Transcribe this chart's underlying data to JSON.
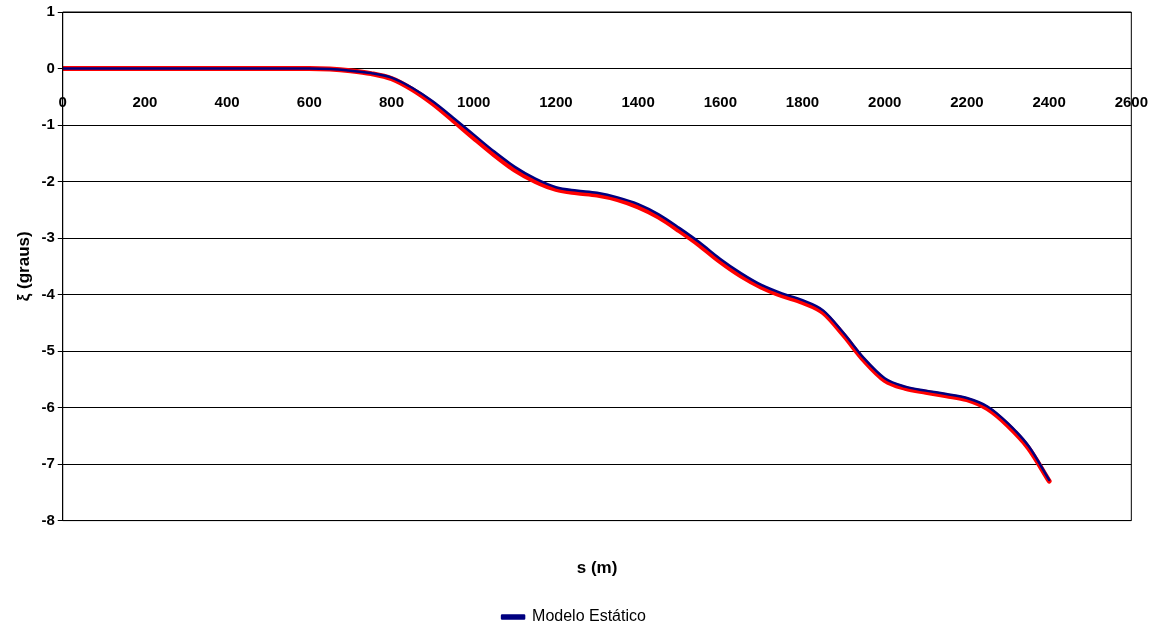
{
  "chart_data": {
    "type": "line",
    "xlabel": "s (m)",
    "ylabel": "ξ (graus)",
    "x": [
      0,
      200,
      400,
      600,
      650,
      700,
      750,
      800,
      850,
      900,
      950,
      1000,
      1050,
      1100,
      1150,
      1200,
      1250,
      1300,
      1350,
      1400,
      1450,
      1500,
      1550,
      1600,
      1650,
      1700,
      1750,
      1800,
      1850,
      1900,
      1950,
      2000,
      2050,
      2100,
      2150,
      2200,
      2250,
      2300,
      2350,
      2400
    ],
    "series": [
      {
        "color": "#ff0000",
        "values": [
          0,
          0,
          0,
          0,
          -0.01,
          -0.04,
          -0.09,
          -0.18,
          -0.37,
          -0.62,
          -0.92,
          -1.23,
          -1.53,
          -1.8,
          -2.0,
          -2.14,
          -2.2,
          -2.24,
          -2.32,
          -2.45,
          -2.63,
          -2.87,
          -3.13,
          -3.42,
          -3.67,
          -3.87,
          -4.02,
          -4.14,
          -4.32,
          -4.72,
          -5.17,
          -5.52,
          -5.66,
          -5.73,
          -5.79,
          -5.86,
          -6.02,
          -6.32,
          -6.72,
          -7.3
        ]
      },
      {
        "name": "Modelo Estático",
        "color": "#000080",
        "values": [
          0,
          0,
          0,
          0,
          -0.01,
          -0.04,
          -0.08,
          -0.16,
          -0.34,
          -0.58,
          -0.87,
          -1.17,
          -1.47,
          -1.74,
          -1.95,
          -2.1,
          -2.16,
          -2.2,
          -2.28,
          -2.4,
          -2.58,
          -2.82,
          -3.08,
          -3.37,
          -3.62,
          -3.83,
          -3.98,
          -4.1,
          -4.28,
          -4.68,
          -5.13,
          -5.48,
          -5.63,
          -5.7,
          -5.76,
          -5.83,
          -5.98,
          -6.28,
          -6.68,
          -7.28
        ]
      }
    ],
    "xlim": [
      0,
      2600
    ],
    "xticks": [
      0,
      200,
      400,
      600,
      800,
      1000,
      1200,
      1400,
      1600,
      1800,
      2000,
      2200,
      2400,
      2600
    ],
    "ylim": [
      -8,
      1
    ],
    "yticks": [
      -8,
      -7,
      -6,
      -5,
      -4,
      -3,
      -2,
      -1,
      0,
      1
    ],
    "grid": "y",
    "legend": "bottom",
    "marker": "none",
    "line_style": "solid"
  }
}
